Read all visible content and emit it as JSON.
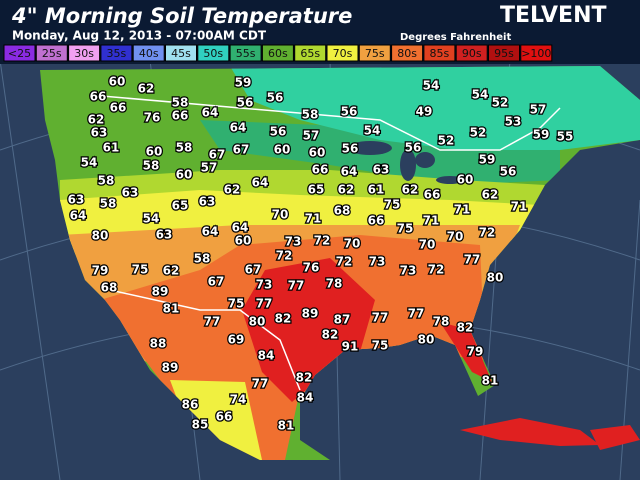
{
  "header": {
    "title": "4\" Morning Soil Temperature",
    "subtitle": "Monday, Aug 12, 2013 - 07:00AM CDT",
    "brand": "TELVENT",
    "units": "Degrees Fahrenheit"
  },
  "legend": [
    {
      "label": "<25",
      "color": "#8a2be2"
    },
    {
      "label": "25s",
      "color": "#c070d0"
    },
    {
      "label": "30s",
      "color": "#f0a0f0"
    },
    {
      "label": "35s",
      "color": "#3030d0"
    },
    {
      "label": "40s",
      "color": "#7090f0"
    },
    {
      "label": "45s",
      "color": "#a0e0f0"
    },
    {
      "label": "50s",
      "color": "#30d0c0"
    },
    {
      "label": "55s",
      "color": "#30b070"
    },
    {
      "label": "60s",
      "color": "#60b030"
    },
    {
      "label": "65s",
      "color": "#b0d830"
    },
    {
      "label": "70s",
      "color": "#f0f040"
    },
    {
      "label": "75s",
      "color": "#f0a040"
    },
    {
      "label": "80s",
      "color": "#f07030"
    },
    {
      "label": "85s",
      "color": "#e04020"
    },
    {
      "label": "90s",
      "color": "#d02020"
    },
    {
      "label": "95s",
      "color": "#b01010"
    },
    {
      "label": ">100",
      "color": "#e01010"
    }
  ],
  "stations": [
    60,
    62,
    59,
    56,
    58,
    56,
    66,
    66,
    76,
    66,
    64,
    58,
    56,
    54,
    49,
    54,
    52,
    57,
    55,
    62,
    63,
    61,
    60,
    58,
    67,
    67,
    64,
    56,
    57,
    54,
    60,
    60,
    56,
    56,
    52,
    52,
    53,
    59,
    54,
    58,
    60,
    57,
    64,
    66,
    64,
    63,
    59,
    56,
    58,
    63,
    58,
    63,
    65,
    63,
    62,
    65,
    62,
    61,
    62,
    66,
    60,
    62,
    64,
    54,
    70,
    71,
    68,
    66,
    75,
    71,
    71,
    71,
    80,
    63,
    64,
    64,
    60,
    73,
    72,
    70,
    75,
    70,
    70,
    72,
    72,
    79,
    75,
    62,
    58,
    67,
    76,
    72,
    73,
    73,
    72,
    77,
    80,
    68,
    67,
    73,
    77,
    78,
    89,
    81,
    75,
    77,
    77,
    80,
    82,
    89,
    87,
    77,
    77,
    78,
    82,
    88,
    69,
    84,
    82,
    91,
    75,
    80,
    79,
    89,
    77,
    82,
    81,
    86,
    74,
    84,
    85,
    66,
    81
  ]
}
